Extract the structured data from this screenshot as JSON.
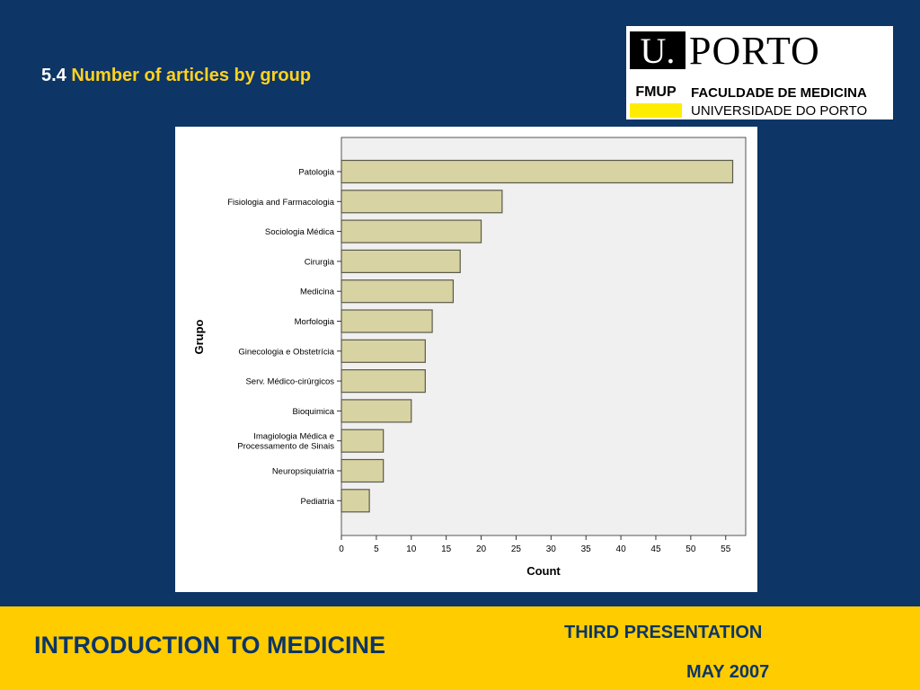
{
  "slide": {
    "number": "5.4",
    "title": "Number of articles by group"
  },
  "logo": {
    "u_mark": "U.",
    "name": "PORTO",
    "fmup": "FMUP",
    "line1": "FACULDADE DE MEDICINA",
    "line2": "UNIVERSIDADE DO PORTO"
  },
  "footer": {
    "title": "INTRODUCTION TO MEDICINE",
    "presentation": "THIRD PRESENTATION",
    "date": "MAY 2007"
  },
  "chart_data": {
    "type": "bar",
    "orientation": "horizontal",
    "categories": [
      "Patologia",
      "Fisiologia and Farmacologia",
      "Sociologia Médica",
      "Cirurgia",
      "Medicina",
      "Morfologia",
      "Ginecologia e Obstetrícia",
      "Serv. Médico-cirúrgicos",
      "Bioquimica",
      "Imagiologia Médica e Processamento de Sinais",
      "Neuropsiquiatria",
      "Pediatria"
    ],
    "values": [
      56,
      23,
      20,
      17,
      16,
      13,
      12,
      12,
      10,
      6,
      6,
      4
    ],
    "xlabel": "Count",
    "ylabel": "Grupo",
    "xlim": [
      0,
      55
    ],
    "xticks": [
      0,
      5,
      10,
      15,
      20,
      25,
      30,
      35,
      40,
      45,
      50,
      55
    ],
    "grid": false,
    "colors": {
      "bar_fill": "#d8d3a2",
      "bar_stroke": "#5a5a4a",
      "plot_bg": "#f0f0f0"
    }
  }
}
